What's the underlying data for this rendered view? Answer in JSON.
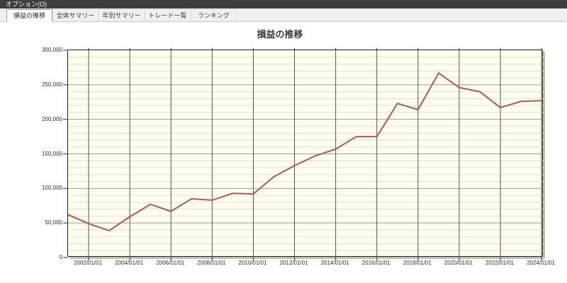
{
  "menu_bar": {
    "items": [
      {
        "label": "オプション(O)"
      }
    ]
  },
  "tab_bar": {
    "tabs": [
      {
        "label": "損益の推移",
        "selected": true
      },
      {
        "label": "全体サマリー",
        "selected": false
      },
      {
        "label": "年別サマリー",
        "selected": false
      },
      {
        "label": "トレード一覧",
        "selected": false
      },
      {
        "label": "ランキング",
        "selected": false
      }
    ]
  },
  "chart_data": {
    "type": "line",
    "title": "損益の推移",
    "legend": false,
    "grid": true,
    "xlim": [
      2001,
      2024.1
    ],
    "ylim": [
      0,
      300000
    ],
    "y_major_step": 50000,
    "y_minor_step": 10000,
    "y_tick_labels": [
      "0",
      "50,000",
      "100,000",
      "150,000",
      "200,000",
      "250,000",
      "300,000"
    ],
    "x_tick_years": [
      2002,
      2004,
      2006,
      2008,
      2010,
      2012,
      2014,
      2016,
      2018,
      2020,
      2022,
      2024
    ],
    "x_tick_labels": [
      "2002/01/01",
      "2004/01/01",
      "2006/01/01",
      "2008/01/01",
      "2010/01/01",
      "2012/01/01",
      "2014/01/01",
      "2016/01/01",
      "2018/01/01",
      "2020/01/01",
      "2022/01/01",
      "2024/01/01"
    ],
    "x": [
      2001,
      2002,
      2003,
      2004,
      2005,
      2006,
      2007,
      2008,
      2009,
      2010,
      2011,
      2012,
      2013,
      2014,
      2015,
      2016,
      2017,
      2018,
      2019,
      2020,
      2021,
      2022,
      2023,
      2024
    ],
    "series": [
      {
        "name": "損益の推移",
        "color": "#a55d58",
        "values": [
          62000,
          49000,
          39000,
          59000,
          77000,
          67000,
          85000,
          83000,
          93000,
          92000,
          117000,
          133000,
          147000,
          157000,
          175000,
          175000,
          223000,
          214000,
          267000,
          246000,
          240000,
          217000,
          226000,
          227000
        ]
      }
    ],
    "colors": {
      "plot_bg": "#fdfcee",
      "minor_grid": "#e2e1d0",
      "major_grid": "#a0a096",
      "vertical_grid": "#55544f",
      "border": "#202020",
      "tick": "#2e2e2e"
    }
  }
}
